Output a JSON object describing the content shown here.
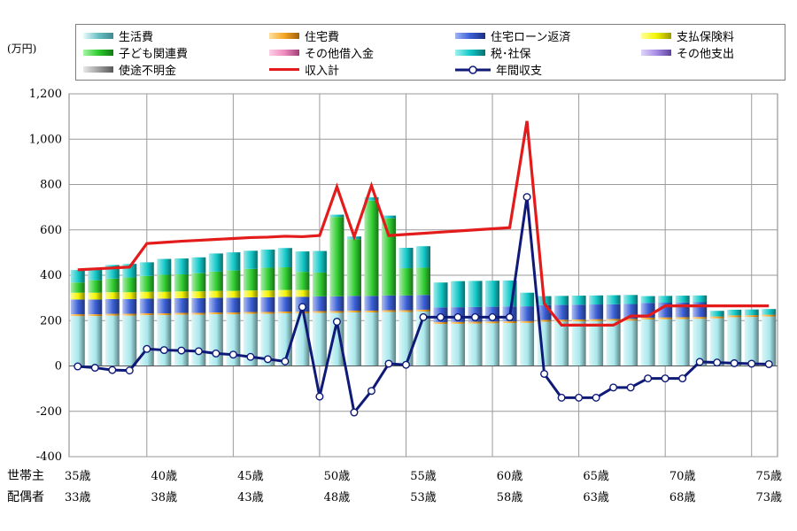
{
  "unit_label": "(万円)",
  "legend": [
    {
      "key": "living",
      "label": "生活費",
      "color": "#a8e8ec"
    },
    {
      "key": "housing",
      "label": "住宅費",
      "color": "#f5a623"
    },
    {
      "key": "loan",
      "label": "住宅ローン返済",
      "color": "#3a5fd6"
    },
    {
      "key": "insurance",
      "label": "支払保険料",
      "color": "#f4f400"
    },
    {
      "key": "children",
      "label": "子ども関連費",
      "color": "#2fcd2f"
    },
    {
      "key": "otherloan",
      "label": "その他借入金",
      "color": "#f08cc0"
    },
    {
      "key": "tax",
      "label": "税･社保",
      "color": "#12c8c8"
    },
    {
      "key": "otherexp",
      "label": "その他支出",
      "color": "#a98ee6"
    },
    {
      "key": "unknown",
      "label": "使途不明金",
      "color": "#b0b0b0"
    },
    {
      "key": "income",
      "label": "収入計",
      "color": "#e31b1b",
      "line": true
    },
    {
      "key": "balance",
      "label": "年間収支",
      "color": "#0f1a78",
      "line": true,
      "marker": true
    }
  ],
  "chart_data": {
    "type": "bar",
    "stacked": true,
    "ylim": [
      -400,
      1200
    ],
    "yticks": [
      -400,
      -200,
      0,
      200,
      400,
      600,
      800,
      1000,
      1200
    ],
    "ytick_labels": [
      "-400",
      "-200",
      "0",
      "200",
      "400",
      "600",
      "800",
      "1,000",
      "1,200"
    ],
    "x_start_age": 35,
    "x_count": 41,
    "grid": true,
    "row_labels": [
      "世帯主",
      "配偶者"
    ],
    "age_ticks_head": [
      "35歳",
      "40歳",
      "45歳",
      "50歳",
      "55歳",
      "60歳",
      "65歳",
      "70歳",
      "75歳"
    ],
    "age_ticks_spouse": [
      "33歳",
      "38歳",
      "43歳",
      "48歳",
      "53歳",
      "58歳",
      "63歳",
      "68歳",
      "73歳"
    ],
    "age_tick_every": 5,
    "series": [
      {
        "key": "living",
        "values": [
          220,
          220,
          222,
          222,
          224,
          224,
          226,
          226,
          228,
          228,
          230,
          230,
          232,
          232,
          234,
          234,
          236,
          236,
          238,
          238,
          240,
          185,
          186,
          187,
          188,
          189,
          190,
          195,
          196,
          197,
          198,
          199,
          200,
          205,
          206,
          207,
          208,
          210,
          215,
          216,
          218
        ]
      },
      {
        "key": "housing",
        "values": [
          8,
          8,
          8,
          8,
          8,
          8,
          8,
          8,
          8,
          8,
          8,
          8,
          8,
          8,
          8,
          8,
          8,
          8,
          8,
          8,
          8,
          8,
          8,
          8,
          8,
          8,
          8,
          8,
          8,
          8,
          8,
          8,
          8,
          8,
          8,
          8,
          8,
          8,
          8,
          8,
          8
        ]
      },
      {
        "key": "loan",
        "values": [
          65,
          65,
          65,
          65,
          65,
          65,
          65,
          65,
          65,
          65,
          65,
          65,
          65,
          65,
          65,
          65,
          65,
          65,
          65,
          65,
          65,
          65,
          65,
          65,
          65,
          65,
          65,
          65,
          65,
          65,
          65,
          65,
          65,
          65,
          65,
          65,
          65,
          0,
          0,
          0,
          0
        ]
      },
      {
        "key": "insurance",
        "values": [
          30,
          30,
          30,
          30,
          30,
          30,
          30,
          30,
          30,
          30,
          30,
          30,
          30,
          30,
          0,
          0,
          0,
          0,
          0,
          0,
          0,
          0,
          0,
          0,
          0,
          0,
          0,
          0,
          0,
          0,
          0,
          0,
          0,
          0,
          0,
          0,
          0,
          0,
          0,
          0,
          0
        ]
      },
      {
        "key": "children",
        "values": [
          45,
          55,
          60,
          65,
          70,
          75,
          75,
          80,
          85,
          90,
          95,
          100,
          100,
          80,
          105,
          350,
          250,
          420,
          340,
          120,
          120,
          0,
          0,
          0,
          0,
          0,
          0,
          0,
          0,
          0,
          0,
          0,
          0,
          0,
          0,
          0,
          0,
          0,
          0,
          0,
          0
        ]
      },
      {
        "key": "otherloan",
        "values": [
          0,
          0,
          0,
          0,
          0,
          0,
          0,
          0,
          0,
          0,
          0,
          0,
          0,
          0,
          0,
          0,
          0,
          0,
          0,
          0,
          0,
          0,
          0,
          0,
          0,
          0,
          0,
          0,
          0,
          0,
          0,
          0,
          0,
          0,
          0,
          0,
          0,
          0,
          0,
          0,
          0
        ]
      },
      {
        "key": "tax",
        "values": [
          55,
          55,
          60,
          60,
          60,
          70,
          70,
          70,
          80,
          80,
          80,
          80,
          85,
          90,
          95,
          10,
          12,
          15,
          12,
          90,
          95,
          110,
          115,
          115,
          115,
          115,
          60,
          40,
          40,
          40,
          40,
          40,
          40,
          30,
          30,
          30,
          30,
          25,
          25,
          25,
          25
        ]
      },
      {
        "key": "otherexp",
        "values": [
          0,
          0,
          0,
          0,
          0,
          0,
          0,
          0,
          0,
          0,
          0,
          0,
          0,
          0,
          0,
          0,
          0,
          0,
          0,
          0,
          0,
          0,
          0,
          0,
          0,
          0,
          0,
          0,
          0,
          0,
          0,
          0,
          0,
          0,
          0,
          0,
          0,
          0,
          0,
          0,
          0
        ]
      },
      {
        "key": "unknown",
        "values": [
          0,
          0,
          0,
          0,
          0,
          0,
          0,
          0,
          0,
          0,
          0,
          0,
          0,
          0,
          0,
          0,
          0,
          0,
          0,
          0,
          0,
          0,
          0,
          0,
          0,
          0,
          0,
          0,
          0,
          0,
          0,
          0,
          0,
          0,
          0,
          0,
          0,
          0,
          0,
          0,
          0
        ]
      }
    ],
    "income": [
      424,
      428,
      432,
      436,
      540,
      545,
      550,
      554,
      558,
      562,
      566,
      568,
      572,
      570,
      575,
      790,
      570,
      795,
      575,
      580,
      585,
      590,
      595,
      600,
      605,
      610,
      1080,
      275,
      180,
      180,
      180,
      180,
      220,
      220,
      265,
      265,
      265,
      265,
      265,
      265,
      265
    ],
    "balance": [
      -2,
      -8,
      -18,
      -20,
      75,
      70,
      68,
      65,
      55,
      50,
      40,
      30,
      20,
      260,
      -135,
      195,
      -205,
      -110,
      10,
      5,
      215,
      215,
      215,
      215,
      215,
      215,
      745,
      -35,
      -140,
      -140,
      -140,
      -95,
      -95,
      -55,
      -55,
      -55,
      18,
      15,
      12,
      10,
      8
    ]
  }
}
